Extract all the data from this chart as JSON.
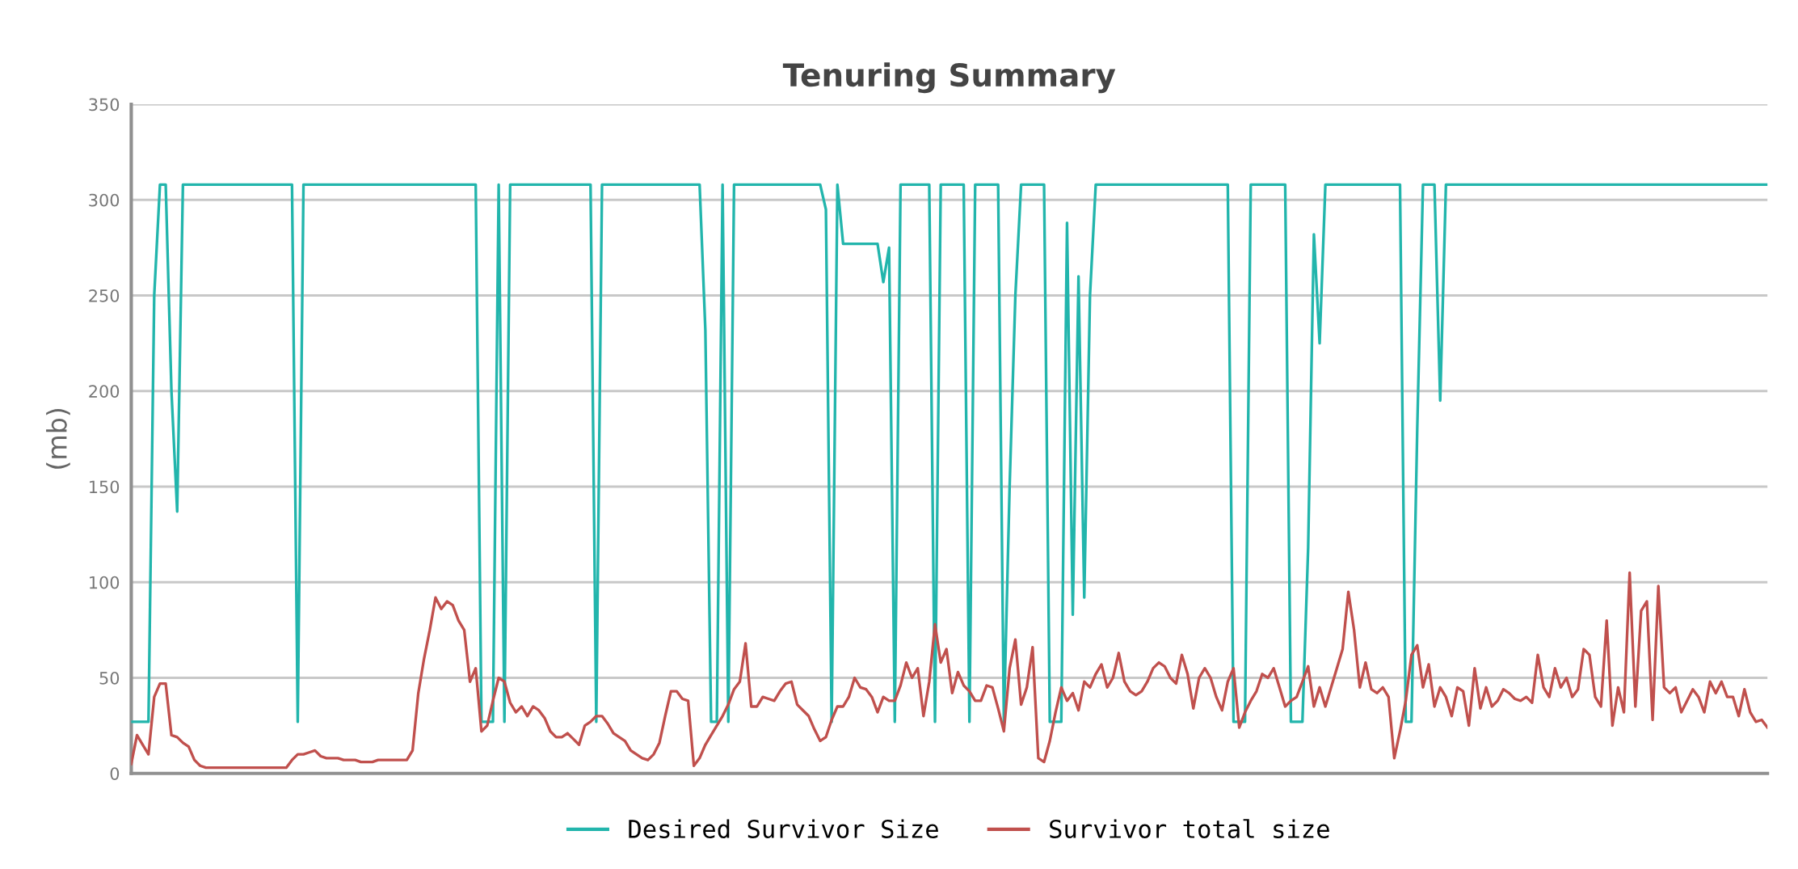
{
  "chart_data": {
    "type": "line",
    "title": "Tenuring Summary",
    "ylabel": "(mb)",
    "ylim": [
      0,
      350
    ],
    "yticks": [
      0,
      50,
      100,
      150,
      200,
      250,
      300,
      350
    ],
    "grid": "y",
    "legend": "bottom",
    "line_style": "solid",
    "marker": "none",
    "categories": [
      null,
      null,
      null,
      null,
      null,
      null,
      null,
      null,
      null,
      null,
      null,
      null,
      null,
      null,
      null,
      null,
      null,
      null,
      null,
      null,
      null,
      null,
      null,
      null,
      null,
      null,
      null,
      null,
      null,
      null,
      null,
      null,
      null,
      null,
      null,
      null,
      null,
      null,
      null,
      null,
      null,
      null,
      null,
      null,
      null,
      null,
      null,
      null,
      null,
      null,
      null,
      null,
      null,
      null,
      null,
      null,
      null,
      null,
      null,
      null,
      null,
      null,
      null,
      null,
      null,
      null,
      null,
      null,
      null,
      null,
      null,
      null,
      null,
      null,
      null,
      null,
      null,
      null,
      null,
      null,
      null,
      null,
      null,
      null,
      null,
      null,
      null,
      null,
      null,
      null,
      null,
      null,
      null,
      null,
      null,
      null,
      null,
      null,
      null,
      null,
      null,
      null,
      null,
      null,
      null,
      null,
      null,
      null,
      null,
      null,
      null,
      null,
      null,
      null,
      null,
      null,
      null,
      null,
      null,
      null,
      null,
      null,
      null,
      null,
      null,
      null,
      null,
      null,
      null,
      null,
      null,
      null,
      null,
      null,
      null,
      null,
      null,
      null,
      null,
      null,
      null,
      null,
      null,
      null,
      null,
      null,
      null,
      null,
      null,
      null,
      null,
      null,
      null,
      null,
      null,
      null,
      null,
      null,
      null,
      null,
      null,
      null,
      null,
      null,
      null,
      null,
      null,
      null,
      null,
      null,
      null,
      null,
      null,
      null,
      null,
      null,
      null,
      null,
      null,
      null,
      null,
      null,
      null,
      null,
      null,
      null,
      null,
      null,
      null,
      null,
      null,
      null,
      null,
      null,
      null,
      null,
      null,
      null,
      null,
      null,
      null,
      null,
      null,
      null,
      null,
      null,
      null,
      null,
      null,
      null,
      null,
      null,
      null,
      null,
      null,
      null,
      null,
      null,
      null,
      null,
      null,
      null,
      null,
      null,
      null,
      null,
      null,
      null,
      null,
      null,
      null,
      null,
      null,
      null,
      null,
      null,
      null,
      null,
      null,
      null,
      null,
      null,
      null,
      null,
      null,
      null,
      null,
      null,
      null,
      null,
      null,
      null,
      null,
      null,
      null,
      null,
      null,
      null,
      null,
      null,
      null,
      null,
      null,
      null,
      null,
      null,
      null,
      null,
      null,
      null,
      null,
      null,
      null,
      null,
      null,
      null,
      null,
      null,
      null,
      null,
      null,
      null,
      null,
      null,
      null,
      null
    ],
    "series": [
      {
        "name": "Desired Survivor Size",
        "color": "#22b5ac",
        "values": [
          27,
          27,
          27,
          27,
          250,
          308,
          308,
          200,
          137,
          308,
          308,
          308,
          308,
          308,
          308,
          308,
          308,
          308,
          308,
          308,
          308,
          308,
          308,
          308,
          308,
          308,
          308,
          308,
          308,
          27,
          308,
          308,
          308,
          308,
          308,
          308,
          308,
          308,
          308,
          308,
          308,
          308,
          308,
          308,
          308,
          308,
          308,
          308,
          308,
          308,
          308,
          308,
          308,
          308,
          308,
          308,
          308,
          308,
          308,
          308,
          308,
          27,
          27,
          27,
          308,
          27,
          308,
          308,
          308,
          308,
          308,
          308,
          308,
          308,
          308,
          308,
          308,
          308,
          308,
          308,
          308,
          27,
          308,
          308,
          308,
          308,
          308,
          308,
          308,
          308,
          308,
          308,
          308,
          308,
          308,
          308,
          308,
          308,
          308,
          308,
          232,
          27,
          27,
          308,
          27,
          308,
          308,
          308,
          308,
          308,
          308,
          308,
          308,
          308,
          308,
          308,
          308,
          308,
          308,
          308,
          308,
          295,
          27,
          308,
          277,
          277,
          277,
          277,
          277,
          277,
          277,
          257,
          275,
          27,
          308,
          308,
          308,
          308,
          308,
          308,
          27,
          308,
          308,
          308,
          308,
          308,
          27,
          308,
          308,
          308,
          308,
          308,
          27,
          150,
          250,
          308,
          308,
          308,
          308,
          308,
          27,
          27,
          27,
          288,
          83,
          260,
          92,
          250,
          308,
          308,
          308,
          308,
          308,
          308,
          308,
          308,
          308,
          308,
          308,
          308,
          308,
          308,
          308,
          308,
          308,
          308,
          308,
          308,
          308,
          308,
          308,
          308,
          27,
          27,
          27,
          308,
          308,
          308,
          308,
          308,
          308,
          308,
          27,
          27,
          27,
          118,
          282,
          225,
          308,
          308,
          308,
          308,
          308,
          308,
          308,
          308,
          308,
          308,
          308,
          308,
          308,
          308,
          27,
          27,
          180,
          308,
          308,
          308,
          195,
          308,
          308,
          308,
          308,
          308,
          308,
          308,
          308,
          308,
          308,
          308,
          308,
          308,
          308,
          308,
          308,
          308,
          308,
          308,
          308,
          308,
          308,
          308,
          308,
          308,
          308,
          308,
          308,
          308,
          308,
          308,
          308,
          308,
          308,
          308,
          308,
          308,
          308,
          308,
          308,
          308,
          308,
          308,
          308,
          308,
          308,
          308,
          308,
          308,
          308,
          308,
          308,
          308,
          308,
          308,
          308,
          308
        ]
      },
      {
        "name": "Survivor total size",
        "color": "#c0504d",
        "values": [
          5,
          20,
          15,
          10,
          40,
          47,
          47,
          20,
          19,
          16,
          14,
          7,
          4,
          3,
          3,
          3,
          3,
          3,
          3,
          3,
          3,
          3,
          3,
          3,
          3,
          3,
          3,
          3,
          7,
          10,
          10,
          11,
          12,
          9,
          8,
          8,
          8,
          7,
          7,
          7,
          6,
          6,
          6,
          7,
          7,
          7,
          7,
          7,
          7,
          12,
          42,
          60,
          75,
          92,
          86,
          90,
          88,
          80,
          75,
          48,
          55,
          22,
          25,
          38,
          50,
          48,
          37,
          32,
          35,
          30,
          35,
          33,
          29,
          22,
          19,
          19,
          21,
          18,
          15,
          25,
          27,
          30,
          30,
          26,
          21,
          19,
          17,
          12,
          10,
          8,
          7,
          10,
          16,
          30,
          43,
          43,
          39,
          38,
          4,
          8,
          15,
          20,
          25,
          30,
          36,
          44,
          48,
          68,
          35,
          35,
          40,
          39,
          38,
          43,
          47,
          48,
          36,
          33,
          30,
          23,
          17,
          19,
          28,
          35,
          35,
          40,
          50,
          45,
          44,
          40,
          32,
          40,
          38,
          38,
          46,
          58,
          50,
          55,
          30,
          48,
          78,
          58,
          65,
          42,
          53,
          46,
          43,
          38,
          38,
          46,
          45,
          34,
          22,
          55,
          70,
          36,
          45,
          66,
          8,
          6,
          17,
          32,
          45,
          38,
          42,
          33,
          48,
          45,
          52,
          57,
          45,
          50,
          63,
          48,
          43,
          41,
          43,
          48,
          55,
          58,
          56,
          50,
          47,
          62,
          52,
          34,
          50,
          55,
          50,
          40,
          33,
          48,
          55,
          24,
          32,
          38,
          43,
          52,
          50,
          55,
          45,
          35,
          38,
          40,
          48,
          56,
          35,
          45,
          35,
          45,
          55,
          65,
          95,
          75,
          45,
          58,
          44,
          42,
          45,
          40,
          8,
          22,
          38,
          62,
          67,
          45,
          57,
          35,
          45,
          40,
          30,
          45,
          43,
          25,
          55,
          34,
          45,
          35,
          38,
          44,
          42,
          39,
          38,
          40,
          37,
          62,
          45,
          40,
          55,
          45,
          50,
          40,
          44,
          65,
          62,
          40,
          35,
          80,
          25,
          45,
          32,
          105,
          35,
          85,
          90,
          28,
          98,
          45,
          42,
          45,
          32,
          38,
          44,
          40,
          32,
          48,
          42,
          48,
          40,
          40,
          30,
          44,
          32,
          27,
          28,
          24
        ]
      }
    ]
  }
}
